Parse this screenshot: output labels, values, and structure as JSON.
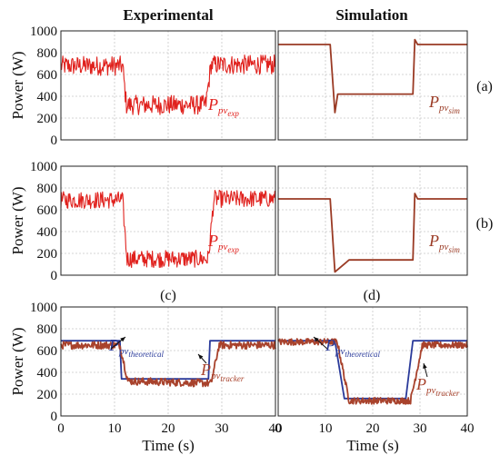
{
  "columns": {
    "left_title": "Experimental",
    "right_title": "Simulation"
  },
  "colors": {
    "experimental": "#e0211d",
    "simulation": "#9a3a24",
    "tracker": "#a8422c",
    "theoretical": "#2a3a9a",
    "grid": "#c8c8c8"
  },
  "chart_data": [
    {
      "id": "exp_a",
      "type": "line",
      "ylabel": "Power (W)",
      "ylim": [
        0,
        1000
      ],
      "yticks": [
        "0",
        "200",
        "400",
        "600",
        "800",
        "1000"
      ],
      "xlim": [
        0,
        40
      ],
      "grid": true,
      "series": [
        {
          "key": "exp",
          "noisy": true,
          "noise": 90,
          "points": [
            [
              0,
              680
            ],
            [
              11.5,
              680
            ],
            [
              12.2,
              320
            ],
            [
              27,
              320
            ],
            [
              28,
              690
            ],
            [
              40,
              690
            ]
          ]
        }
      ],
      "annotation": {
        "main": "P",
        "sub": "pv",
        "subsub": "exp"
      }
    },
    {
      "id": "sim_a",
      "type": "line",
      "ylim": [
        0,
        1000
      ],
      "xlim": [
        0,
        40
      ],
      "grid": true,
      "series": [
        {
          "key": "sim",
          "noisy": false,
          "points": [
            [
              0,
              875
            ],
            [
              11,
              875
            ],
            [
              12,
              250
            ],
            [
              12.6,
              420
            ],
            [
              28.5,
              420
            ],
            [
              28.9,
              920
            ],
            [
              29.5,
              875
            ],
            [
              40,
              875
            ]
          ]
        }
      ],
      "annotation": {
        "main": "P",
        "sub": "pv",
        "subsub": "sim"
      },
      "tag": "(a)"
    },
    {
      "id": "exp_b",
      "type": "line",
      "ylabel": "Power (W)",
      "ylim": [
        0,
        1000
      ],
      "yticks": [
        "0",
        "200",
        "400",
        "600",
        "800",
        "1000"
      ],
      "xlim": [
        0,
        40
      ],
      "grid": true,
      "series": [
        {
          "key": "exp",
          "noisy": true,
          "noise": 80,
          "points": [
            [
              0,
              690
            ],
            [
              11.5,
              690
            ],
            [
              12.3,
              150
            ],
            [
              27.5,
              150
            ],
            [
              28.5,
              700
            ],
            [
              40,
              700
            ]
          ]
        }
      ],
      "annotation": {
        "main": "P",
        "sub": "pv",
        "subsub": "exp"
      },
      "tag": "(c)"
    },
    {
      "id": "sim_b",
      "type": "line",
      "ylim": [
        0,
        1000
      ],
      "xlim": [
        0,
        40
      ],
      "grid": true,
      "series": [
        {
          "key": "sim",
          "noisy": false,
          "points": [
            [
              0,
              700
            ],
            [
              11,
              700
            ],
            [
              12,
              30
            ],
            [
              15,
              140
            ],
            [
              28.5,
              140
            ],
            [
              28.9,
              750
            ],
            [
              29.5,
              700
            ],
            [
              40,
              700
            ]
          ]
        }
      ],
      "annotation": {
        "main": "P",
        "sub": "pv",
        "subsub": "sim"
      },
      "tag": "(b)",
      "bottom_tag": "(d)"
    },
    {
      "id": "exp_c",
      "type": "line",
      "ylabel": "Power (W)",
      "xlabel": "Time (s)",
      "ylim": [
        0,
        1000
      ],
      "yticks": [
        "0",
        "200",
        "400",
        "600",
        "800",
        "1000"
      ],
      "xlim": [
        0,
        40
      ],
      "xticks": [
        "0",
        "10",
        "20",
        "30",
        "40"
      ],
      "grid": true,
      "series": [
        {
          "key": "theoretical",
          "noisy": false,
          "points": [
            [
              0,
              690
            ],
            [
              11,
              690
            ],
            [
              11.3,
              340
            ],
            [
              27.5,
              340
            ],
            [
              27.8,
              690
            ],
            [
              40,
              690
            ]
          ]
        },
        {
          "key": "tracker",
          "noisy": true,
          "noise": 35,
          "points": [
            [
              0,
              650
            ],
            [
              11,
              650
            ],
            [
              12.5,
              320
            ],
            [
              28,
              300
            ],
            [
              29.5,
              650
            ],
            [
              40,
              650
            ]
          ]
        }
      ],
      "annotations": [
        {
          "main": "P",
          "sub": "pv",
          "subsub": "theoretical"
        },
        {
          "main": "P",
          "sub": "pv",
          "subsub": "tracker"
        }
      ]
    },
    {
      "id": "sim_c",
      "type": "line",
      "xlabel": "Time (s)",
      "ylim": [
        0,
        1000
      ],
      "xlim": [
        0,
        40
      ],
      "xticks": [
        "0",
        "10",
        "20",
        "30",
        "40"
      ],
      "grid": true,
      "series": [
        {
          "key": "theoretical",
          "noisy": false,
          "points": [
            [
              0,
              690
            ],
            [
              12,
              690
            ],
            [
              14,
              160
            ],
            [
              27,
              160
            ],
            [
              28.5,
              690
            ],
            [
              40,
              690
            ]
          ]
        },
        {
          "key": "tracker",
          "noisy": true,
          "noise": 30,
          "points": [
            [
              0,
              680
            ],
            [
              12.5,
              680
            ],
            [
              15,
              140
            ],
            [
              28,
              140
            ],
            [
              30.5,
              650
            ],
            [
              40,
              650
            ]
          ]
        }
      ],
      "annotations": [
        {
          "main": "P",
          "sub": "pv",
          "subsub": "theoretical"
        },
        {
          "main": "P",
          "sub": "pv",
          "subsub": "tracker"
        }
      ]
    }
  ]
}
